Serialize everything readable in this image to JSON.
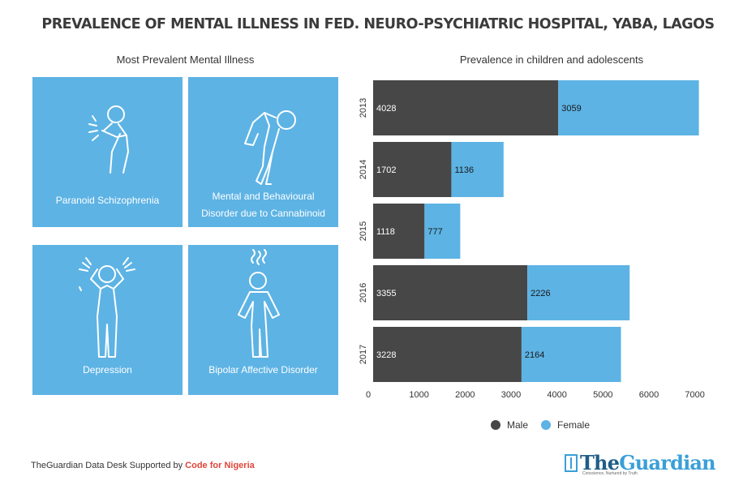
{
  "title": "PREVALENCE OF MENTAL ILLNESS IN FED. NEURO-PSYCHIATRIC HOSPITAL, YABA, LAGOS",
  "left_panel": {
    "subtitle": "Most Prevalent Mental Illness",
    "tiles": [
      {
        "label_lines": [
          "Paranoid Schizophrenia"
        ],
        "icon": "sneezing-person-icon"
      },
      {
        "label_lines": [
          "Mental and Behavioural",
          "Disorder due to Cannabinoid"
        ],
        "icon": "hunched-person-icon"
      },
      {
        "label_lines": [
          "Depression"
        ],
        "icon": "head-in-hands-person-icon"
      },
      {
        "label_lines": [
          "Bipolar Affective Disorder"
        ],
        "icon": "steaming-head-person-icon"
      }
    ],
    "tile_color": "#5db3e4"
  },
  "chart_data": {
    "type": "bar",
    "orientation": "horizontal",
    "stacked": true,
    "title": "Prevalence in children and adolescents",
    "categories": [
      "2013",
      "2014",
      "2015",
      "2016",
      "2017"
    ],
    "series": [
      {
        "name": "Male",
        "values": [
          4028,
          1702,
          1118,
          3355,
          3228
        ],
        "color": "#474747"
      },
      {
        "name": "Female",
        "values": [
          3059,
          1136,
          777,
          2226,
          2164
        ],
        "color": "#5db3e4"
      }
    ],
    "xlim": [
      0,
      7500
    ],
    "xticks": [
      0,
      1000,
      2000,
      3000,
      4000,
      5000,
      6000,
      7000
    ],
    "legend": "bottom-center"
  },
  "footer": {
    "text": "TheGuardian Data Desk Supported by ",
    "accent": "Code for Nigeria",
    "accent_color": "#e0453a"
  },
  "logo": {
    "the": "The",
    "name": "Guardian",
    "tagline": "Conscience, Nurtured by Truth",
    "color": "#3a9fd8"
  }
}
